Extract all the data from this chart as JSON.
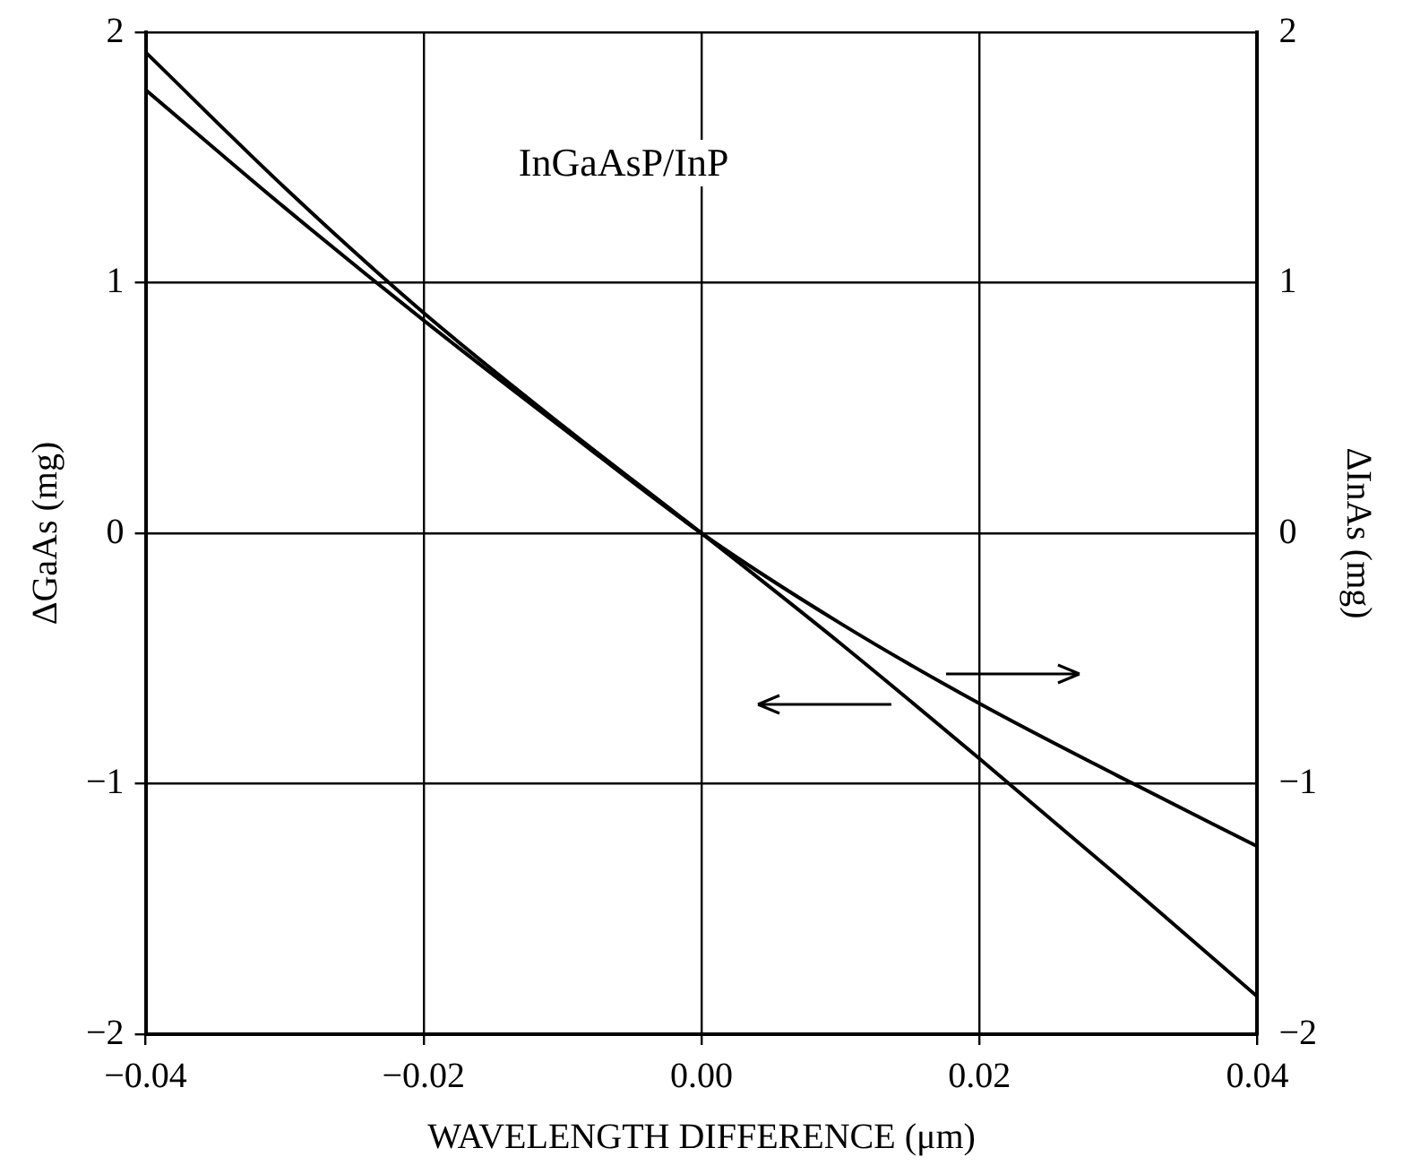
{
  "chart_data": {
    "type": "line",
    "xlabel": "WAVELENGTH DIFFERENCE (μm)",
    "ylabel": "ΔGaAs (mg)",
    "y2label": "ΔInAs (mg)",
    "annotations": [
      "InGaAsP/InP"
    ],
    "x": [
      -0.04,
      -0.03,
      -0.02,
      -0.01,
      0,
      0.01,
      0.02,
      0.03,
      0.04
    ],
    "series": [
      {
        "color": "#000000",
        "values": [
          1.92,
          1.38,
          0.88,
          0.43,
          0,
          -0.44,
          -0.9,
          -1.37,
          -1.85
        ]
      },
      {
        "color": "#000000",
        "axis": "y2",
        "values": [
          1.77,
          1.3,
          0.85,
          0.42,
          0,
          -0.36,
          -0.68,
          -0.97,
          -1.25
        ]
      }
    ],
    "xlim": [
      -0.04,
      0.04
    ],
    "xticks": [
      {
        "value": -0.04,
        "label": "−0.04"
      },
      {
        "value": -0.02,
        "label": "−0.02"
      },
      {
        "value": 0,
        "label": "0.00"
      },
      {
        "value": 0.02,
        "label": "0.02"
      },
      {
        "value": 0.04,
        "label": "0.04"
      }
    ],
    "ylim": [
      -2,
      2
    ],
    "yticks": [
      {
        "value": -2,
        "label": "−2"
      },
      {
        "value": -1,
        "label": "−1"
      },
      0,
      1,
      2
    ],
    "y2lim": [
      -2,
      2
    ],
    "y2ticks": [
      {
        "value": -2,
        "label": "−2"
      },
      {
        "value": -1,
        "label": "−1"
      },
      0,
      1,
      2
    ],
    "grid": true,
    "legend": false,
    "marker": "none",
    "line_style": "solid"
  }
}
